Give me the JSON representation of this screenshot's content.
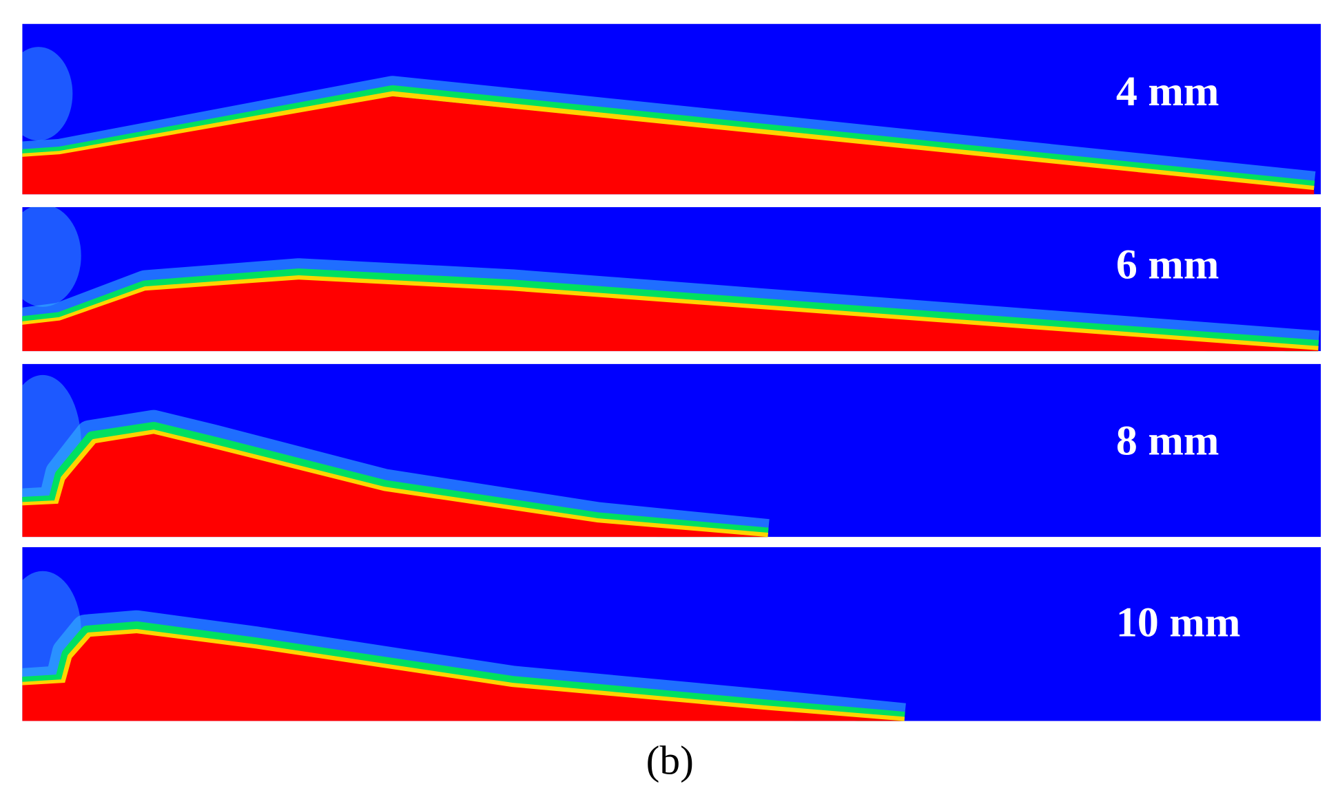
{
  "panels": [
    {
      "label": "4 mm"
    },
    {
      "label": "6 mm"
    },
    {
      "label": "8 mm"
    },
    {
      "label": "10 mm"
    }
  ],
  "caption": "(b)"
}
